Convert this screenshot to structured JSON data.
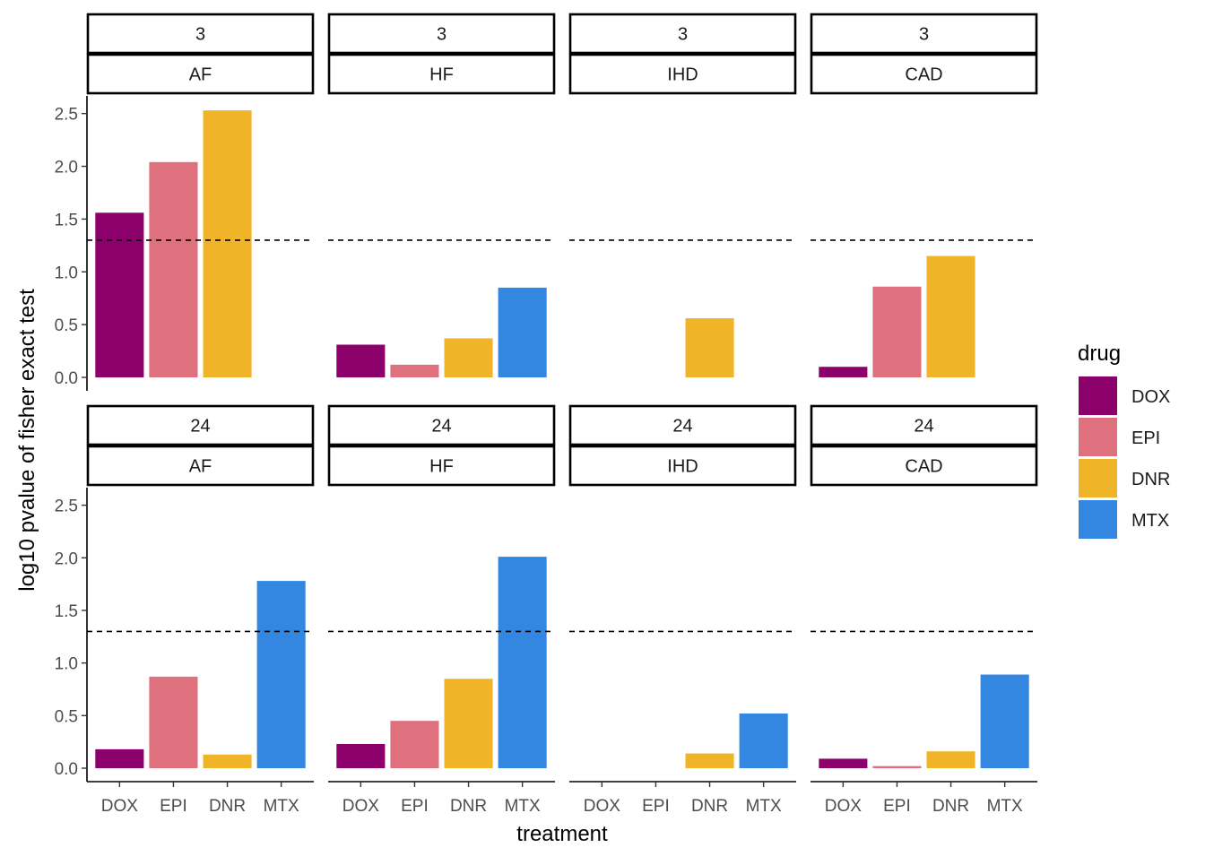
{
  "chart_data": {
    "type": "bar",
    "xlabel": "treatment",
    "ylabel": "log10 pvalue of fisher exact test",
    "ylim": [
      0,
      2.65
    ],
    "yticks": [
      "0.0",
      "0.5",
      "1.0",
      "1.5",
      "2.0",
      "2.5"
    ],
    "yticks_values": [
      0,
      0.5,
      1.0,
      1.5,
      2.0,
      2.5
    ],
    "threshold": 1.3,
    "categories": [
      "DOX",
      "EPI",
      "DNR",
      "MTX"
    ],
    "legend": {
      "title": "drug",
      "position": "right",
      "items": [
        {
          "label": "DOX",
          "color": "#8B006B"
        },
        {
          "label": "EPI",
          "color": "#DF717F"
        },
        {
          "label": "DNR",
          "color": "#F0B429"
        },
        {
          "label": "MTX",
          "color": "#3387E0"
        }
      ]
    },
    "panels": [
      {
        "time": "3",
        "group": "AF",
        "values": [
          1.56,
          2.04,
          2.53,
          null
        ]
      },
      {
        "time": "3",
        "group": "HF",
        "values": [
          0.31,
          0.12,
          0.37,
          0.85
        ]
      },
      {
        "time": "3",
        "group": "IHD",
        "values": [
          null,
          null,
          0.56,
          null
        ]
      },
      {
        "time": "3",
        "group": "CAD",
        "values": [
          0.1,
          0.86,
          1.15,
          null
        ]
      },
      {
        "time": "24",
        "group": "AF",
        "values": [
          0.18,
          0.87,
          0.13,
          1.78
        ]
      },
      {
        "time": "24",
        "group": "HF",
        "values": [
          0.23,
          0.45,
          0.85,
          2.01
        ]
      },
      {
        "time": "24",
        "group": "IHD",
        "values": [
          null,
          null,
          0.14,
          0.52
        ]
      },
      {
        "time": "24",
        "group": "CAD",
        "values": [
          0.09,
          0.02,
          0.16,
          0.89
        ]
      }
    ]
  }
}
